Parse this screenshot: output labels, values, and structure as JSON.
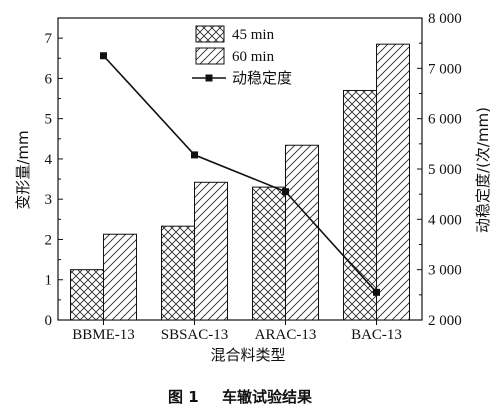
{
  "chart_data": {
    "type": "bar",
    "categories": [
      "BBME-13",
      "SBSAC-13",
      "ARAC-13",
      "BAC-13"
    ],
    "series": [
      {
        "name": "45 min",
        "values": [
          1.25,
          2.33,
          3.3,
          5.7
        ]
      },
      {
        "name": "60 min",
        "values": [
          2.13,
          3.42,
          4.34,
          6.85
        ]
      }
    ],
    "line_series": {
      "name": "动稳定度",
      "values": [
        7250,
        5280,
        4550,
        2550
      ]
    },
    "xlabel": "混合料类型",
    "ylabel": "变形量/mm",
    "y2label": "动稳定度/(次/mm)",
    "ylim": [
      0,
      7.5
    ],
    "y2lim": [
      2000,
      8000
    ],
    "yticks": [
      "0",
      "1",
      "2",
      "3",
      "4",
      "5",
      "6",
      "7"
    ],
    "y2ticks": [
      "2 000",
      "3 000",
      "4 000",
      "5 000",
      "6 000",
      "7 000",
      "8 000"
    ],
    "legend_position": "top-center",
    "grid": false
  },
  "caption": {
    "label": "图 1",
    "text": "车辙试验结果"
  }
}
